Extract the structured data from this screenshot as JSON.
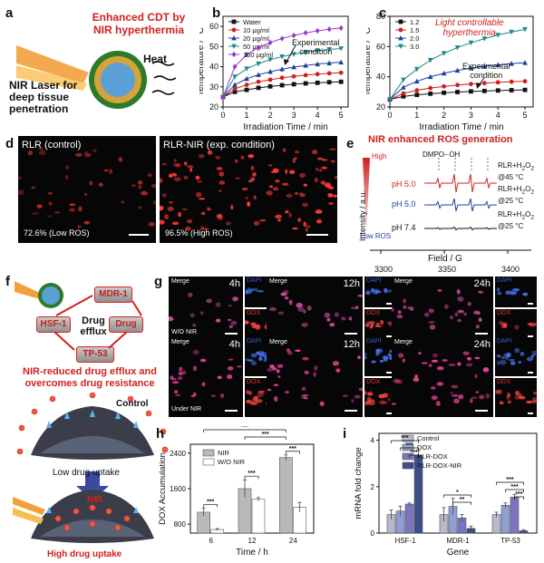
{
  "panels": {
    "a": {
      "letter": "a",
      "title_line1": "Enhanced CDT by",
      "title_line2": "NIR hyperthermia",
      "heat": "Heat",
      "laser_line1": "NIR Laser for",
      "laser_line2": "deep tissue",
      "laser_line3": "penetration"
    },
    "b": {
      "letter": "b",
      "annotation_line1": "Experimental",
      "annotation_line2": "condition"
    },
    "c": {
      "letter": "c",
      "subtitle_line1": "Light controllable",
      "subtitle_line2": "hyperthermia",
      "annotation_line1": "Experimental",
      "annotation_line2": "condition"
    },
    "d": {
      "letter": "d",
      "left_title": "RLR (control)",
      "right_title": "RLR-NIR (exp. condition)",
      "left_pct": "72.6% (Low ROS)",
      "right_pct": "96.5% (High ROS)"
    },
    "e": {
      "letter": "e",
      "title": "NIR enhanced ROS generation",
      "high": "High",
      "low": "Low ROS",
      "peak": "DMPO-·OH",
      "ylabel": "Intensity / a.u.",
      "xlabel": "Field / G",
      "ticks": [
        "3300",
        "3350",
        "3400"
      ],
      "traces": [
        {
          "ph": "pH 5.0",
          "cond1": "RLR+H",
          "sub": "2",
          "mid": "O",
          "sub2": "2",
          "cond2": "@45 °C",
          "color": "#d0201e"
        },
        {
          "ph": "pH 5.0",
          "cond1": "RLR+H",
          "sub": "2",
          "mid": "O",
          "sub2": "2",
          "cond2": "@25 °C",
          "color": "#1f3f9a"
        },
        {
          "ph": "pH 7.4",
          "cond1": "RLR+H",
          "sub": "2",
          "mid": "O",
          "sub2": "2",
          "cond2": "@25 °C",
          "color": "#111111"
        }
      ]
    },
    "f": {
      "letter": "f",
      "mdr": "MDR-1",
      "hsf": "HSF-1",
      "drug": "Drug",
      "tp": "TP-53",
      "center_line1": "Drug",
      "center_line2": "efflux",
      "red_line1": "NIR-reduced drug efflux and",
      "red_line2": "overcomes drug resistance",
      "control": "Control",
      "low_uptake": "Low drug uptake",
      "nir": "NIR",
      "high_uptake": "High drug uptake"
    },
    "g": {
      "letter": "g",
      "merge": "Merge",
      "dapi": "DAPI",
      "dox": "DOX",
      "times": [
        "4h",
        "12h",
        "24h"
      ],
      "row1_label": "W/O NIR",
      "row2_label": "Under NIR"
    },
    "h": {
      "letter": "h"
    },
    "i": {
      "letter": "i"
    }
  },
  "chart_data": [
    {
      "id": "b",
      "type": "line",
      "title": "",
      "xlabel": "Irradiation Time / min",
      "ylabel": "Temperature / °C",
      "xlim": [
        0,
        5.3
      ],
      "ylim": [
        20,
        65
      ],
      "xticks": [
        0,
        1,
        2,
        3,
        4,
        5
      ],
      "yticks": [
        20,
        30,
        40,
        50,
        60
      ],
      "legend": "top-left",
      "x": [
        0,
        0.5,
        1,
        1.5,
        2,
        2.5,
        3,
        3.5,
        4,
        4.5,
        5
      ],
      "series": [
        {
          "name": "Water",
          "color": "#111111",
          "marker": "square",
          "values": [
            25,
            27.5,
            28.5,
            29.5,
            30.2,
            30.8,
            31.3,
            31.7,
            32,
            32.3,
            32.5
          ]
        },
        {
          "name": "10 μg/ml",
          "color": "#d0201e",
          "marker": "circle",
          "values": [
            25,
            29,
            31,
            32.5,
            33.5,
            34.5,
            35.2,
            35.8,
            36.3,
            36.7,
            37
          ]
        },
        {
          "name": "20 μg/ml",
          "color": "#1f3f9a",
          "marker": "triangle",
          "values": [
            25,
            31,
            34,
            36,
            37.5,
            38.8,
            39.8,
            40.6,
            41.3,
            41.8,
            42.2
          ]
        },
        {
          "name": "50 μg/ml",
          "color": "#1c8a8a",
          "marker": "triangle-down",
          "values": [
            25,
            35,
            39,
            41.5,
            43.5,
            45,
            46.2,
            47.2,
            48,
            48.6,
            49
          ]
        },
        {
          "name": "100 μg/ml",
          "color": "#9a37c9",
          "marker": "diamond",
          "values": [
            25,
            40,
            46,
            49.5,
            52,
            54,
            55.5,
            56.8,
            57.8,
            58.6,
            59.2
          ]
        }
      ]
    },
    {
      "id": "c",
      "type": "line",
      "title": "",
      "xlabel": "Irradiation Time / min",
      "ylabel": "Temperature / °C",
      "xlim": [
        0,
        5.3
      ],
      "ylim": [
        20,
        80
      ],
      "xticks": [
        0,
        1,
        2,
        3,
        4,
        5
      ],
      "yticks": [
        20,
        40,
        60,
        80
      ],
      "legend": "top-left",
      "x": [
        0,
        0.5,
        1,
        1.5,
        2,
        2.5,
        3,
        3.5,
        4,
        4.5,
        5
      ],
      "series": [
        {
          "name": "1.2",
          "color": "#111111",
          "marker": "square",
          "values": [
            25,
            27,
            28,
            28.8,
            29.4,
            29.9,
            30.3,
            30.6,
            30.9,
            31.1,
            31.3
          ]
        },
        {
          "name": "1.5",
          "color": "#d0201e",
          "marker": "circle",
          "values": [
            25,
            29,
            31,
            32.5,
            33.6,
            34.5,
            35.2,
            35.8,
            36.3,
            36.7,
            37
          ]
        },
        {
          "name": "2.0",
          "color": "#1f3f9a",
          "marker": "triangle",
          "values": [
            25,
            33,
            37,
            40,
            42.3,
            44.2,
            45.7,
            46.9,
            47.9,
            48.7,
            49.3
          ]
        },
        {
          "name": "3.0",
          "color": "#1c8a8a",
          "marker": "triangle-down",
          "values": [
            25,
            38,
            45,
            51,
            55.5,
            59.3,
            62.5,
            65.2,
            67.6,
            69.6,
            71.4
          ]
        }
      ]
    },
    {
      "id": "h",
      "type": "bar",
      "title": "",
      "xlabel": "Time / h",
      "ylabel": "DOX Accumulation",
      "categories": [
        "6",
        "12",
        "24"
      ],
      "ylim": [
        600,
        2600
      ],
      "yticks": [
        800,
        1600,
        2400
      ],
      "legend": "top-left",
      "series": [
        {
          "name": "NIR",
          "color": "#b9b9b9",
          "values": [
            1070,
            1600,
            2300
          ],
          "errors": [
            90,
            200,
            60
          ]
        },
        {
          "name": "W/O NIR",
          "color": "#ffffff",
          "values": [
            680,
            1360,
            1180
          ],
          "errors": [
            20,
            40,
            110
          ]
        }
      ],
      "significance": [
        "***",
        "***",
        "***",
        "***",
        "***"
      ]
    },
    {
      "id": "i",
      "type": "bar",
      "title": "",
      "xlabel": "Gene",
      "ylabel": "mRNA fold change",
      "categories": [
        "HSF-1",
        "MDR-1",
        "TP-53"
      ],
      "ylim": [
        0,
        4.3
      ],
      "yticks": [
        0,
        2,
        4
      ],
      "legend": "top-right",
      "series": [
        {
          "name": "Control",
          "color": "#b7b9cc",
          "values": [
            0.8,
            0.8,
            0.8
          ],
          "errors": [
            0.2,
            0.3,
            0.1
          ]
        },
        {
          "name": "DOX",
          "color": "#8f9fd4",
          "values": [
            0.95,
            1.15,
            1.2
          ],
          "errors": [
            0.2,
            0.35,
            0.1
          ]
        },
        {
          "name": "RLR-DOX",
          "color": "#7b74c0",
          "values": [
            1.25,
            0.65,
            1.55
          ],
          "errors": [
            0.05,
            0.15,
            0.12
          ]
        },
        {
          "name": "RLR-DOX-NIR",
          "color": "#3c4c8a",
          "values": [
            3.35,
            0.2,
            0.1
          ],
          "errors": [
            0.2,
            0.1,
            0.05
          ]
        }
      ],
      "significance": [
        "***",
        "***",
        "***",
        "*",
        "**",
        "***",
        "***",
        "***"
      ]
    }
  ]
}
